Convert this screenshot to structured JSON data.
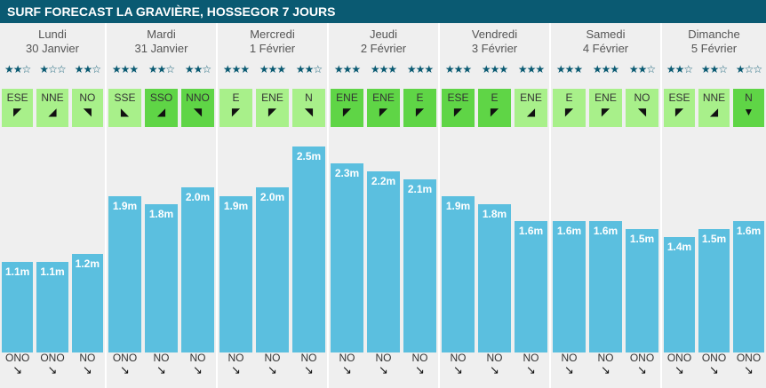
{
  "title": "SURF FORECAST LA GRAVIÈRE, HOSSEGOR 7 JOURS",
  "days": [
    {
      "name": "Lundi",
      "date": "30 Janvier",
      "slots": [
        {
          "stars": 2,
          "wind": "ESE",
          "wind_level": 1,
          "wind_arrow": "◤",
          "height": 1.1,
          "height_label": "1.1m",
          "swell": "ONO",
          "swell_arrow": "↘"
        },
        {
          "stars": 1,
          "wind": "NNE",
          "wind_level": 1,
          "wind_arrow": "◢",
          "height": 1.1,
          "height_label": "1.1m",
          "swell": "ONO",
          "swell_arrow": "↘"
        },
        {
          "stars": 2,
          "wind": "NO",
          "wind_level": 1,
          "wind_arrow": "◥",
          "height": 1.2,
          "height_label": "1.2m",
          "swell": "NO",
          "swell_arrow": "↘"
        }
      ]
    },
    {
      "name": "Mardi",
      "date": "31 Janvier",
      "slots": [
        {
          "stars": 3,
          "wind": "SSE",
          "wind_level": 1,
          "wind_arrow": "◣",
          "height": 1.9,
          "height_label": "1.9m",
          "swell": "ONO",
          "swell_arrow": "↘"
        },
        {
          "stars": 2,
          "wind": "SSO",
          "wind_level": 2,
          "wind_arrow": "◢",
          "height": 1.8,
          "height_label": "1.8m",
          "swell": "NO",
          "swell_arrow": "↘"
        },
        {
          "stars": 2,
          "wind": "NNO",
          "wind_level": 2,
          "wind_arrow": "◥",
          "height": 2.0,
          "height_label": "2.0m",
          "swell": "NO",
          "swell_arrow": "↘"
        }
      ]
    },
    {
      "name": "Mercredi",
      "date": "1 Février",
      "slots": [
        {
          "stars": 3,
          "wind": "E",
          "wind_level": 1,
          "wind_arrow": "◤",
          "height": 1.9,
          "height_label": "1.9m",
          "swell": "NO",
          "swell_arrow": "↘"
        },
        {
          "stars": 3,
          "wind": "ENE",
          "wind_level": 1,
          "wind_arrow": "◤",
          "height": 2.0,
          "height_label": "2.0m",
          "swell": "NO",
          "swell_arrow": "↘"
        },
        {
          "stars": 2,
          "wind": "N",
          "wind_level": 1,
          "wind_arrow": "◥",
          "height": 2.5,
          "height_label": "2.5m",
          "swell": "NO",
          "swell_arrow": "↘"
        }
      ]
    },
    {
      "name": "Jeudi",
      "date": "2 Février",
      "slots": [
        {
          "stars": 3,
          "wind": "ENE",
          "wind_level": 2,
          "wind_arrow": "◤",
          "height": 2.3,
          "height_label": "2.3m",
          "swell": "NO",
          "swell_arrow": "↘"
        },
        {
          "stars": 3,
          "wind": "ENE",
          "wind_level": 2,
          "wind_arrow": "◤",
          "height": 2.2,
          "height_label": "2.2m",
          "swell": "NO",
          "swell_arrow": "↘"
        },
        {
          "stars": 3,
          "wind": "E",
          "wind_level": 2,
          "wind_arrow": "◤",
          "height": 2.1,
          "height_label": "2.1m",
          "swell": "NO",
          "swell_arrow": "↘"
        }
      ]
    },
    {
      "name": "Vendredi",
      "date": "3 Février",
      "slots": [
        {
          "stars": 3,
          "wind": "ESE",
          "wind_level": 2,
          "wind_arrow": "◤",
          "height": 1.9,
          "height_label": "1.9m",
          "swell": "NO",
          "swell_arrow": "↘"
        },
        {
          "stars": 3,
          "wind": "E",
          "wind_level": 2,
          "wind_arrow": "◤",
          "height": 1.8,
          "height_label": "1.8m",
          "swell": "NO",
          "swell_arrow": "↘"
        },
        {
          "stars": 3,
          "wind": "ENE",
          "wind_level": 1,
          "wind_arrow": "◢",
          "height": 1.6,
          "height_label": "1.6m",
          "swell": "NO",
          "swell_arrow": "↘"
        }
      ]
    },
    {
      "name": "Samedi",
      "date": "4 Février",
      "slots": [
        {
          "stars": 3,
          "wind": "E",
          "wind_level": 1,
          "wind_arrow": "◤",
          "height": 1.6,
          "height_label": "1.6m",
          "swell": "NO",
          "swell_arrow": "↘"
        },
        {
          "stars": 3,
          "wind": "ENE",
          "wind_level": 1,
          "wind_arrow": "◤",
          "height": 1.6,
          "height_label": "1.6m",
          "swell": "NO",
          "swell_arrow": "↘"
        },
        {
          "stars": 2,
          "wind": "NO",
          "wind_level": 1,
          "wind_arrow": "◥",
          "height": 1.5,
          "height_label": "1.5m",
          "swell": "ONO",
          "swell_arrow": "↘"
        }
      ]
    },
    {
      "name": "Dimanche",
      "date": "5 Février",
      "slots": [
        {
          "stars": 2,
          "wind": "ESE",
          "wind_level": 1,
          "wind_arrow": "◤",
          "height": 1.4,
          "height_label": "1.4m",
          "swell": "ONO",
          "swell_arrow": "↘"
        },
        {
          "stars": 2,
          "wind": "NNE",
          "wind_level": 1,
          "wind_arrow": "◢",
          "height": 1.5,
          "height_label": "1.5m",
          "swell": "ONO",
          "swell_arrow": "↘"
        },
        {
          "stars": 1,
          "wind": "N",
          "wind_level": 2,
          "wind_arrow": "▼",
          "height": 1.6,
          "height_label": "1.6m",
          "swell": "ONO",
          "swell_arrow": "↘"
        }
      ]
    }
  ],
  "colors": {
    "header_bg": "#0a5a72",
    "bar": "#5bbfdf",
    "wind_light": "#a8f08a",
    "wind_strong": "#5fd546",
    "star_on": "#0a5a72",
    "star_off": "#0a5a72"
  },
  "chart_data": {
    "type": "bar",
    "title": "SURF FORECAST LA GRAVIÈRE, HOSSEGOR 7 JOURS",
    "categories": [
      "Lundi 30 Janvier",
      "Lundi 30 Janvier",
      "Lundi 30 Janvier",
      "Mardi 31 Janvier",
      "Mardi 31 Janvier",
      "Mardi 31 Janvier",
      "Mercredi 1 Février",
      "Mercredi 1 Février",
      "Mercredi 1 Février",
      "Jeudi 2 Février",
      "Jeudi 2 Février",
      "Jeudi 2 Février",
      "Vendredi 3 Février",
      "Vendredi 3 Février",
      "Vendredi 3 Février",
      "Samedi 4 Février",
      "Samedi 4 Février",
      "Samedi 4 Février",
      "Dimanche 5 Février",
      "Dimanche 5 Février",
      "Dimanche 5 Février"
    ],
    "values": [
      1.1,
      1.1,
      1.2,
      1.9,
      1.8,
      2.0,
      1.9,
      2.0,
      2.5,
      2.3,
      2.2,
      2.1,
      1.9,
      1.8,
      1.6,
      1.6,
      1.6,
      1.5,
      1.4,
      1.5,
      1.6
    ],
    "ylim": [
      0,
      2.7
    ],
    "grid": false,
    "xlabel": "",
    "ylabel": ""
  }
}
